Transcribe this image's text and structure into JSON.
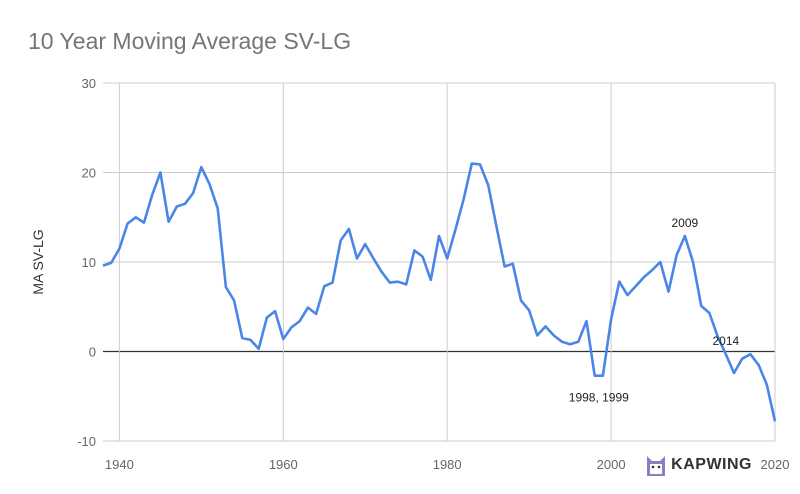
{
  "chart_data": {
    "type": "line",
    "title": "10 Year Moving Average SV-LG",
    "xlabel": "",
    "ylabel": "MA SV-LG",
    "xlim": [
      1938,
      2020
    ],
    "ylim": [
      -10,
      30
    ],
    "x_ticks": [
      "1940",
      "1960",
      "1980",
      "2000",
      "2020"
    ],
    "y_ticks": [
      "30",
      "20",
      "10",
      "0",
      "-10"
    ],
    "grid": true,
    "series": [
      {
        "name": "MA SV-LG",
        "color": "#4a86e8",
        "x": [
          1938,
          1939,
          1940,
          1941,
          1942,
          1943,
          1944,
          1945,
          1946,
          1947,
          1948,
          1949,
          1950,
          1951,
          1952,
          1953,
          1954,
          1955,
          1956,
          1957,
          1958,
          1959,
          1960,
          1961,
          1962,
          1963,
          1964,
          1965,
          1966,
          1967,
          1968,
          1969,
          1970,
          1971,
          1972,
          1973,
          1974,
          1975,
          1976,
          1977,
          1978,
          1979,
          1980,
          1981,
          1982,
          1983,
          1984,
          1985,
          1986,
          1987,
          1988,
          1989,
          1990,
          1991,
          1992,
          1993,
          1994,
          1995,
          1996,
          1997,
          1998,
          1999,
          2000,
          2001,
          2002,
          2003,
          2004,
          2005,
          2006,
          2007,
          2008,
          2009,
          2010,
          2011,
          2012,
          2013,
          2014,
          2015,
          2016,
          2017,
          2018,
          2019,
          2020
        ],
        "values": [
          9.6,
          9.9,
          11.5,
          14.3,
          15.0,
          14.4,
          17.5,
          20.0,
          14.5,
          16.2,
          16.5,
          17.7,
          20.6,
          18.7,
          16.0,
          7.2,
          5.7,
          1.5,
          1.3,
          0.3,
          3.8,
          4.5,
          1.4,
          2.7,
          3.4,
          4.9,
          4.2,
          7.3,
          7.7,
          12.4,
          13.7,
          10.4,
          12.0,
          10.4,
          8.9,
          7.7,
          7.8,
          7.5,
          11.3,
          10.6,
          8.0,
          12.9,
          10.4,
          13.6,
          17.0,
          21.0,
          20.9,
          18.6,
          14.0,
          9.5,
          9.8,
          5.7,
          4.6,
          1.8,
          2.8,
          1.8,
          1.1,
          0.8,
          1.1,
          3.4,
          -2.7,
          -2.7,
          3.6,
          7.8,
          6.3,
          7.3,
          8.3,
          9.1,
          10.0,
          6.7,
          10.8,
          12.9,
          10.0,
          5.1,
          4.3,
          1.7,
          -0.3,
          -2.4,
          -0.8,
          -0.3,
          -1.5,
          -3.7,
          -7.8
        ]
      }
    ],
    "annotations": [
      {
        "text": "1998, 1999",
        "x": 1998.5,
        "y": -2.7,
        "position": "below"
      },
      {
        "text": "2009",
        "x": 2009,
        "y": 12.9,
        "position": "above"
      },
      {
        "text": "2014",
        "x": 2014,
        "y": -0.3,
        "position": "above"
      }
    ]
  },
  "watermark": {
    "text": "KAPWING"
  }
}
